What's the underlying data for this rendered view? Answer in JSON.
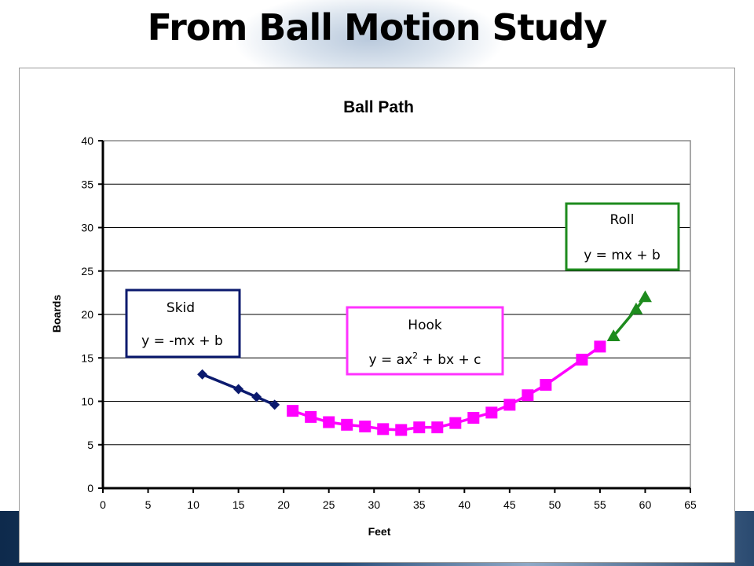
{
  "slide": {
    "title": "From Ball Motion Study"
  },
  "chart_data": {
    "type": "scatter",
    "title": "Ball Path",
    "xlabel": "Feet",
    "ylabel": "Boards",
    "xlim": [
      0,
      65
    ],
    "ylim": [
      0,
      40
    ],
    "xticks": [
      0,
      5,
      10,
      15,
      20,
      25,
      30,
      35,
      40,
      45,
      50,
      55,
      60,
      65
    ],
    "yticks": [
      0,
      5,
      10,
      15,
      20,
      25,
      30,
      35,
      40
    ],
    "grid": "horizontal",
    "legend": "none",
    "series": [
      {
        "segment": "skid",
        "color": "#0b1a6e",
        "marker": "diamond",
        "x": [
          11,
          15,
          17,
          19
        ],
        "y": [
          13.1,
          11.4,
          10.5,
          9.6
        ]
      },
      {
        "segment": "hook",
        "color": "#ff00ff",
        "marker": "square",
        "x": [
          21,
          23,
          25,
          27,
          29,
          31,
          33,
          35,
          37,
          39,
          41,
          43,
          45,
          47,
          49,
          53,
          55
        ],
        "y": [
          8.9,
          8.2,
          7.6,
          7.3,
          7.1,
          6.8,
          6.7,
          7.0,
          7.0,
          7.5,
          8.1,
          8.7,
          9.6,
          10.7,
          11.9,
          14.8,
          16.3
        ]
      },
      {
        "segment": "roll",
        "color": "#1e8b1e",
        "marker": "triangle",
        "x": [
          56.5,
          59,
          60
        ],
        "y": [
          17.5,
          20.6,
          22.0
        ]
      }
    ],
    "annotations": [
      {
        "id": "skid",
        "title": "Skid",
        "formula": "y = -mx + b",
        "border": "#0b1a6e"
      },
      {
        "id": "hook",
        "title": "Hook",
        "formula_pre": "y = ax",
        "formula_sup": "2",
        "formula_post": " + bx + c",
        "border": "#ff33ff"
      },
      {
        "id": "roll",
        "title": "Roll",
        "formula": "y = mx + b",
        "border": "#1e8b1e"
      }
    ]
  }
}
